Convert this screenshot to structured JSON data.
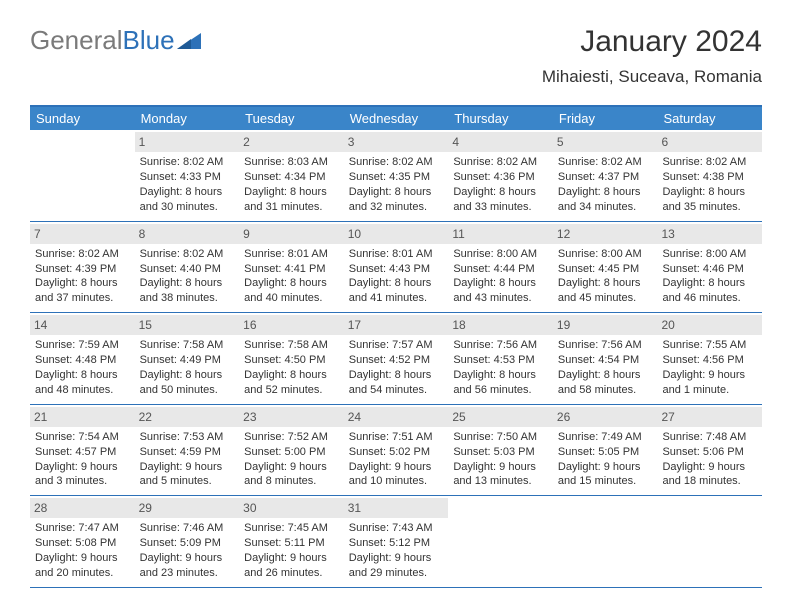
{
  "brand": {
    "word1": "General",
    "word2": "Blue"
  },
  "title": "January 2024",
  "location": "Mihaiesti, Suceava, Romania",
  "colors": {
    "header_bg": "#3a85c9",
    "header_text": "#ffffff",
    "border": "#2d71b8",
    "daynum_bg": "#e8e8e8",
    "daynum_text": "#555555",
    "body_text": "#333333",
    "logo_gray": "#7a7a7a",
    "logo_blue": "#2d71b8"
  },
  "day_headers": [
    "Sunday",
    "Monday",
    "Tuesday",
    "Wednesday",
    "Thursday",
    "Friday",
    "Saturday"
  ],
  "weeks": [
    [
      null,
      {
        "n": "1",
        "sunrise": "Sunrise: 8:02 AM",
        "sunset": "Sunset: 4:33 PM",
        "day": "Daylight: 8 hours and 30 minutes."
      },
      {
        "n": "2",
        "sunrise": "Sunrise: 8:03 AM",
        "sunset": "Sunset: 4:34 PM",
        "day": "Daylight: 8 hours and 31 minutes."
      },
      {
        "n": "3",
        "sunrise": "Sunrise: 8:02 AM",
        "sunset": "Sunset: 4:35 PM",
        "day": "Daylight: 8 hours and 32 minutes."
      },
      {
        "n": "4",
        "sunrise": "Sunrise: 8:02 AM",
        "sunset": "Sunset: 4:36 PM",
        "day": "Daylight: 8 hours and 33 minutes."
      },
      {
        "n": "5",
        "sunrise": "Sunrise: 8:02 AM",
        "sunset": "Sunset: 4:37 PM",
        "day": "Daylight: 8 hours and 34 minutes."
      },
      {
        "n": "6",
        "sunrise": "Sunrise: 8:02 AM",
        "sunset": "Sunset: 4:38 PM",
        "day": "Daylight: 8 hours and 35 minutes."
      }
    ],
    [
      {
        "n": "7",
        "sunrise": "Sunrise: 8:02 AM",
        "sunset": "Sunset: 4:39 PM",
        "day": "Daylight: 8 hours and 37 minutes."
      },
      {
        "n": "8",
        "sunrise": "Sunrise: 8:02 AM",
        "sunset": "Sunset: 4:40 PM",
        "day": "Daylight: 8 hours and 38 minutes."
      },
      {
        "n": "9",
        "sunrise": "Sunrise: 8:01 AM",
        "sunset": "Sunset: 4:41 PM",
        "day": "Daylight: 8 hours and 40 minutes."
      },
      {
        "n": "10",
        "sunrise": "Sunrise: 8:01 AM",
        "sunset": "Sunset: 4:43 PM",
        "day": "Daylight: 8 hours and 41 minutes."
      },
      {
        "n": "11",
        "sunrise": "Sunrise: 8:00 AM",
        "sunset": "Sunset: 4:44 PM",
        "day": "Daylight: 8 hours and 43 minutes."
      },
      {
        "n": "12",
        "sunrise": "Sunrise: 8:00 AM",
        "sunset": "Sunset: 4:45 PM",
        "day": "Daylight: 8 hours and 45 minutes."
      },
      {
        "n": "13",
        "sunrise": "Sunrise: 8:00 AM",
        "sunset": "Sunset: 4:46 PM",
        "day": "Daylight: 8 hours and 46 minutes."
      }
    ],
    [
      {
        "n": "14",
        "sunrise": "Sunrise: 7:59 AM",
        "sunset": "Sunset: 4:48 PM",
        "day": "Daylight: 8 hours and 48 minutes."
      },
      {
        "n": "15",
        "sunrise": "Sunrise: 7:58 AM",
        "sunset": "Sunset: 4:49 PM",
        "day": "Daylight: 8 hours and 50 minutes."
      },
      {
        "n": "16",
        "sunrise": "Sunrise: 7:58 AM",
        "sunset": "Sunset: 4:50 PM",
        "day": "Daylight: 8 hours and 52 minutes."
      },
      {
        "n": "17",
        "sunrise": "Sunrise: 7:57 AM",
        "sunset": "Sunset: 4:52 PM",
        "day": "Daylight: 8 hours and 54 minutes."
      },
      {
        "n": "18",
        "sunrise": "Sunrise: 7:56 AM",
        "sunset": "Sunset: 4:53 PM",
        "day": "Daylight: 8 hours and 56 minutes."
      },
      {
        "n": "19",
        "sunrise": "Sunrise: 7:56 AM",
        "sunset": "Sunset: 4:54 PM",
        "day": "Daylight: 8 hours and 58 minutes."
      },
      {
        "n": "20",
        "sunrise": "Sunrise: 7:55 AM",
        "sunset": "Sunset: 4:56 PM",
        "day": "Daylight: 9 hours and 1 minute."
      }
    ],
    [
      {
        "n": "21",
        "sunrise": "Sunrise: 7:54 AM",
        "sunset": "Sunset: 4:57 PM",
        "day": "Daylight: 9 hours and 3 minutes."
      },
      {
        "n": "22",
        "sunrise": "Sunrise: 7:53 AM",
        "sunset": "Sunset: 4:59 PM",
        "day": "Daylight: 9 hours and 5 minutes."
      },
      {
        "n": "23",
        "sunrise": "Sunrise: 7:52 AM",
        "sunset": "Sunset: 5:00 PM",
        "day": "Daylight: 9 hours and 8 minutes."
      },
      {
        "n": "24",
        "sunrise": "Sunrise: 7:51 AM",
        "sunset": "Sunset: 5:02 PM",
        "day": "Daylight: 9 hours and 10 minutes."
      },
      {
        "n": "25",
        "sunrise": "Sunrise: 7:50 AM",
        "sunset": "Sunset: 5:03 PM",
        "day": "Daylight: 9 hours and 13 minutes."
      },
      {
        "n": "26",
        "sunrise": "Sunrise: 7:49 AM",
        "sunset": "Sunset: 5:05 PM",
        "day": "Daylight: 9 hours and 15 minutes."
      },
      {
        "n": "27",
        "sunrise": "Sunrise: 7:48 AM",
        "sunset": "Sunset: 5:06 PM",
        "day": "Daylight: 9 hours and 18 minutes."
      }
    ],
    [
      {
        "n": "28",
        "sunrise": "Sunrise: 7:47 AM",
        "sunset": "Sunset: 5:08 PM",
        "day": "Daylight: 9 hours and 20 minutes."
      },
      {
        "n": "29",
        "sunrise": "Sunrise: 7:46 AM",
        "sunset": "Sunset: 5:09 PM",
        "day": "Daylight: 9 hours and 23 minutes."
      },
      {
        "n": "30",
        "sunrise": "Sunrise: 7:45 AM",
        "sunset": "Sunset: 5:11 PM",
        "day": "Daylight: 9 hours and 26 minutes."
      },
      {
        "n": "31",
        "sunrise": "Sunrise: 7:43 AM",
        "sunset": "Sunset: 5:12 PM",
        "day": "Daylight: 9 hours and 29 minutes."
      },
      null,
      null,
      null
    ]
  ]
}
